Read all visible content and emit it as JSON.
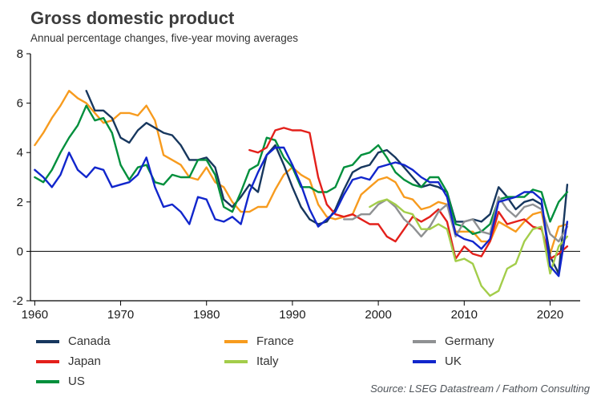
{
  "chart_data": {
    "type": "line",
    "title": "Gross domestic product",
    "subtitle": "Annual percentage changes, five-year moving averages",
    "source": "Source: LSEG Datastream / Fathom Consulting",
    "xlabel": "",
    "ylabel": "",
    "xlim": [
      1959.5,
      2023.5
    ],
    "ylim": [
      -2,
      8
    ],
    "x_ticks": [
      1960,
      1970,
      1980,
      1990,
      2000,
      2010,
      2020
    ],
    "y_ticks": [
      -2,
      0,
      2,
      4,
      6,
      8
    ],
    "grid": false,
    "zero_line": true,
    "legend_position": "bottom",
    "legend_columns": [
      [
        "Canada",
        "Japan",
        "US"
      ],
      [
        "France",
        "Italy"
      ],
      [
        "Germany",
        "UK"
      ]
    ],
    "years": [
      1960,
      1961,
      1962,
      1963,
      1964,
      1965,
      1966,
      1967,
      1968,
      1969,
      1970,
      1971,
      1972,
      1973,
      1974,
      1975,
      1976,
      1977,
      1978,
      1979,
      1980,
      1981,
      1982,
      1983,
      1984,
      1985,
      1986,
      1987,
      1988,
      1989,
      1990,
      1991,
      1992,
      1993,
      1994,
      1995,
      1996,
      1997,
      1998,
      1999,
      2000,
      2001,
      2002,
      2003,
      2004,
      2005,
      2006,
      2007,
      2008,
      2009,
      2010,
      2011,
      2012,
      2013,
      2014,
      2015,
      2016,
      2017,
      2018,
      2019,
      2020,
      2021,
      2022
    ],
    "series": [
      {
        "name": "France",
        "color": "#f79b1e",
        "values": [
          4.3,
          4.8,
          5.4,
          5.9,
          6.5,
          6.2,
          6.0,
          5.6,
          5.2,
          5.3,
          5.6,
          5.6,
          5.5,
          5.9,
          5.3,
          3.9,
          3.7,
          3.5,
          3.0,
          2.9,
          3.4,
          2.8,
          2.6,
          2.0,
          1.6,
          1.6,
          1.8,
          1.8,
          2.5,
          3.1,
          3.4,
          3.1,
          2.9,
          1.9,
          1.4,
          1.3,
          1.4,
          1.5,
          2.3,
          2.6,
          2.9,
          3.0,
          2.8,
          2.2,
          2.1,
          1.7,
          1.8,
          2.0,
          1.9,
          0.8,
          0.8,
          0.8,
          0.4,
          0.4,
          1.2,
          1.0,
          0.8,
          1.2,
          1.5,
          1.6,
          -0.1,
          1.0,
          1.1
        ]
      },
      {
        "name": "Canada",
        "color": "#17375e",
        "values": [
          null,
          null,
          null,
          null,
          null,
          null,
          6.5,
          5.7,
          5.7,
          5.4,
          4.6,
          4.4,
          4.9,
          5.2,
          5.0,
          4.8,
          4.7,
          4.3,
          3.7,
          3.7,
          3.8,
          3.4,
          2.1,
          1.8,
          2.2,
          2.7,
          2.4,
          3.9,
          4.3,
          3.5,
          2.6,
          1.8,
          1.3,
          1.1,
          1.2,
          1.7,
          2.5,
          3.2,
          3.4,
          3.5,
          4.0,
          4.1,
          3.8,
          3.4,
          3.0,
          2.6,
          2.7,
          2.6,
          2.4,
          1.2,
          1.2,
          1.3,
          1.2,
          1.5,
          2.6,
          2.2,
          1.7,
          2.0,
          2.1,
          1.9,
          -0.2,
          -0.9,
          2.7
        ]
      },
      {
        "name": "US",
        "color": "#008f3c",
        "values": [
          3.0,
          2.8,
          3.3,
          4.0,
          4.6,
          5.1,
          5.9,
          5.3,
          5.4,
          4.8,
          3.5,
          2.9,
          3.4,
          3.5,
          2.8,
          2.7,
          3.1,
          3.0,
          3.0,
          3.7,
          3.7,
          3.1,
          1.8,
          1.6,
          2.4,
          3.3,
          3.5,
          4.6,
          4.5,
          3.8,
          3.4,
          2.6,
          2.6,
          2.4,
          2.4,
          2.6,
          3.4,
          3.5,
          3.9,
          4.0,
          4.3,
          3.8,
          3.2,
          2.9,
          2.7,
          2.6,
          3.0,
          3.0,
          2.4,
          1.1,
          1.0,
          0.7,
          0.8,
          1.1,
          2.1,
          2.2,
          2.2,
          2.2,
          2.5,
          2.4,
          1.2,
          2.0,
          2.4
        ]
      },
      {
        "name": "Japan",
        "color": "#e3201b",
        "values": [
          null,
          null,
          null,
          null,
          null,
          null,
          null,
          null,
          null,
          null,
          null,
          null,
          null,
          null,
          null,
          null,
          null,
          null,
          null,
          null,
          null,
          null,
          null,
          null,
          null,
          4.1,
          4.0,
          4.2,
          4.9,
          5.0,
          4.9,
          4.9,
          4.8,
          3.0,
          1.9,
          1.5,
          1.4,
          1.5,
          1.3,
          1.1,
          1.1,
          0.6,
          0.4,
          0.9,
          1.4,
          1.2,
          1.4,
          1.7,
          1.2,
          -0.3,
          0.2,
          -0.1,
          -0.2,
          0.4,
          1.6,
          1.1,
          1.2,
          1.3,
          1.0,
          0.9,
          -0.3,
          -0.1,
          0.2
        ]
      },
      {
        "name": "Germany",
        "color": "#8f9193",
        "values": [
          null,
          null,
          null,
          null,
          null,
          null,
          null,
          null,
          null,
          null,
          null,
          null,
          null,
          null,
          null,
          null,
          null,
          null,
          null,
          null,
          null,
          null,
          null,
          null,
          null,
          null,
          null,
          null,
          null,
          null,
          null,
          null,
          null,
          null,
          null,
          null,
          1.3,
          1.3,
          1.5,
          1.5,
          1.9,
          2.1,
          1.8,
          1.3,
          1.0,
          0.6,
          1.0,
          1.6,
          1.9,
          0.6,
          1.2,
          1.3,
          0.8,
          0.7,
          2.2,
          1.7,
          1.4,
          1.8,
          1.9,
          1.7,
          0.7,
          0.4,
          1.0
        ]
      },
      {
        "name": "Italy",
        "color": "#a3cd4a",
        "values": [
          null,
          null,
          null,
          null,
          null,
          null,
          null,
          null,
          null,
          null,
          null,
          null,
          null,
          null,
          null,
          null,
          null,
          null,
          null,
          null,
          null,
          null,
          null,
          null,
          null,
          null,
          null,
          null,
          null,
          null,
          null,
          null,
          null,
          null,
          null,
          null,
          null,
          null,
          null,
          1.8,
          2.0,
          2.1,
          1.9,
          1.6,
          1.5,
          0.9,
          0.9,
          1.1,
          0.9,
          -0.4,
          -0.3,
          -0.5,
          -1.4,
          -1.8,
          -1.6,
          -0.7,
          -0.5,
          0.4,
          0.9,
          1.0,
          -0.9,
          0.2,
          0.6
        ]
      },
      {
        "name": "UK",
        "color": "#1126cc",
        "values": [
          3.3,
          3.0,
          2.6,
          3.1,
          4.0,
          3.3,
          3.0,
          3.4,
          3.3,
          2.6,
          2.7,
          2.8,
          3.1,
          3.8,
          2.6,
          1.8,
          1.9,
          1.6,
          1.1,
          2.2,
          2.1,
          1.3,
          1.2,
          1.4,
          1.1,
          2.4,
          3.2,
          3.9,
          4.2,
          4.2,
          3.5,
          2.7,
          1.7,
          1.0,
          1.3,
          1.6,
          2.3,
          2.9,
          3.0,
          2.9,
          3.4,
          3.5,
          3.6,
          3.5,
          3.3,
          3.0,
          2.8,
          2.8,
          2.2,
          0.7,
          0.5,
          0.4,
          0.1,
          0.5,
          2.0,
          2.1,
          2.2,
          2.4,
          2.4,
          2.1,
          -0.6,
          -1.0,
          1.2
        ]
      }
    ]
  }
}
